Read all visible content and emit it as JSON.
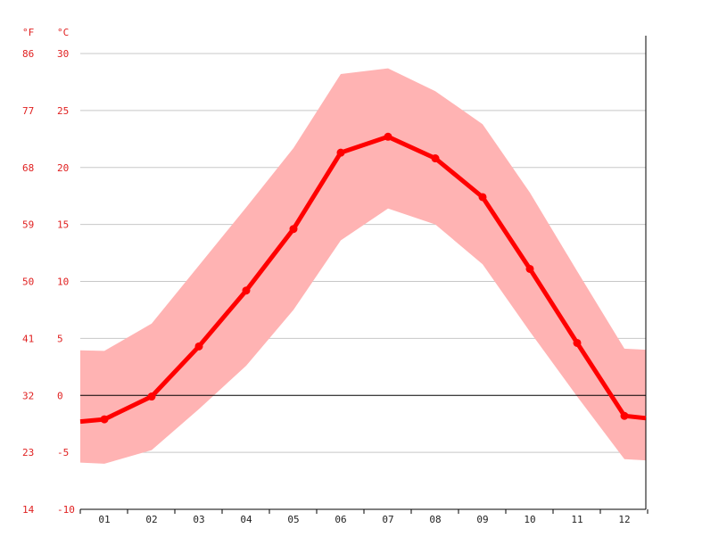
{
  "chart_data": {
    "type": "line",
    "y_unit_left": "°F",
    "y_unit_right": "°C",
    "categories": [
      "01",
      "02",
      "03",
      "04",
      "05",
      "06",
      "07",
      "08",
      "09",
      "10",
      "11",
      "12"
    ],
    "y_ticks_c": [
      30,
      25,
      20,
      15,
      10,
      5,
      0,
      -5,
      -10
    ],
    "y_ticks_f": [
      86,
      77,
      68,
      59,
      50,
      41,
      32,
      23,
      14
    ],
    "ylim": [
      -10,
      30
    ],
    "zero_line": true,
    "grid": true,
    "series": [
      {
        "role": "mean",
        "values": [
          -2.1,
          -0.1,
          4.3,
          9.2,
          14.6,
          21.3,
          22.7,
          20.8,
          17.4,
          11.1,
          4.6,
          -1.8
        ]
      },
      {
        "role": "max",
        "values": [
          3.9,
          6.3,
          11.4,
          16.5,
          21.7,
          28.2,
          28.7,
          26.7,
          23.8,
          17.8,
          10.9,
          4.1
        ]
      },
      {
        "role": "min",
        "values": [
          -6.0,
          -4.8,
          -1.2,
          2.6,
          7.5,
          13.6,
          16.4,
          15.0,
          11.5,
          5.6,
          -0.1,
          -5.6
        ]
      }
    ],
    "colors": {
      "line": "#ff0000",
      "band": "#ffb3b3",
      "tick_text": "#e02020",
      "grid": "#c8c8c8",
      "zero_line": "#000000"
    }
  }
}
